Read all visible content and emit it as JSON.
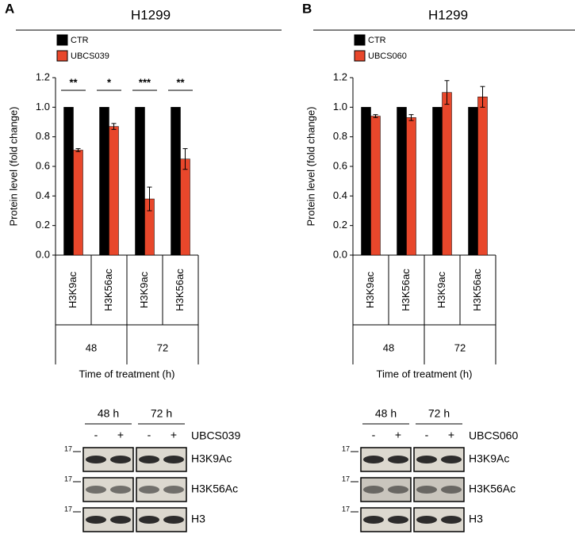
{
  "panels": [
    {
      "label": "A",
      "header": "H1299"
    },
    {
      "label": "B",
      "header": "H1299"
    }
  ],
  "chart_data": [
    {
      "type": "bar",
      "ylabel": "Protein level (fold change)",
      "xlabel": "Time of treatment (h)",
      "categories": [
        "H3K9ac",
        "H3K56ac",
        "H3K9ac",
        "H3K56ac"
      ],
      "groups": [
        "48",
        "72"
      ],
      "series": [
        {
          "name": "CTR",
          "color": "#000000",
          "values": [
            1,
            1,
            1,
            1
          ]
        },
        {
          "name": "UBCS039",
          "color": "#e8472b",
          "values": [
            0.71,
            0.87,
            0.38,
            0.65
          ],
          "errors": [
            0.01,
            0.02,
            0.08,
            0.07
          ]
        }
      ],
      "significance": [
        "**",
        "*",
        "***",
        "**"
      ],
      "ylim": [
        0,
        1.2
      ],
      "yticks": [
        {
          "value": 0,
          "label": "0.0"
        },
        0.2,
        0.4,
        0.6,
        0.8,
        {
          "value": 1,
          "label": "1.0"
        },
        1.2
      ]
    },
    {
      "type": "bar",
      "ylabel": "Protein level (fold change)",
      "xlabel": "Time of treatment (h)",
      "categories": [
        "H3K9ac",
        "H3K56ac",
        "H3K9ac",
        "H3K56ac"
      ],
      "groups": [
        "48",
        "72"
      ],
      "series": [
        {
          "name": "CTR",
          "color": "#000000",
          "values": [
            1,
            1,
            1,
            1
          ]
        },
        {
          "name": "UBCS060",
          "color": "#e8472b",
          "values": [
            0.94,
            0.93,
            1.1,
            1.07
          ],
          "errors": [
            0.01,
            0.02,
            0.08,
            0.07
          ]
        }
      ],
      "ylim": [
        0,
        1.2
      ],
      "yticks": [
        {
          "value": 0,
          "label": "0.0"
        },
        0.2,
        0.4,
        0.6,
        0.8,
        {
          "value": 1,
          "label": "1.0"
        },
        1.2
      ]
    }
  ],
  "blots": [
    {
      "groups": [
        "48 h",
        "72 h"
      ],
      "lanes": [
        "-",
        "+",
        "-",
        "+"
      ],
      "treatment": "UBCS039",
      "marker": "17",
      "rows": [
        "H3K9Ac",
        "H3K56Ac",
        "H3"
      ]
    },
    {
      "groups": [
        "48 h",
        "72 h"
      ],
      "lanes": [
        "-",
        "+",
        "-",
        "+"
      ],
      "treatment": "UBCS060",
      "marker": "17",
      "rows": [
        "H3K9Ac",
        "H3K56Ac",
        "H3"
      ]
    }
  ]
}
